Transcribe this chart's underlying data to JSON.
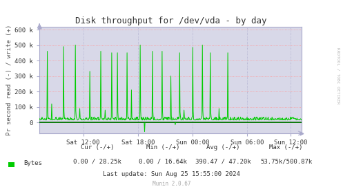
{
  "title": "Disk throughput for /dev/vda - by day",
  "ylabel": "Pr second read (-) / write (+)",
  "ylim": [
    -70000,
    620000
  ],
  "yticks": [
    0,
    100000,
    200000,
    300000,
    400000,
    500000,
    600000
  ],
  "ytick_labels": [
    "0",
    "100 k",
    "200 k",
    "300 k",
    "400 k",
    "500 k",
    "600 k"
  ],
  "xtick_labels": [
    "Sat 12:00",
    "Sat 18:00",
    "Sun 00:00",
    "Sun 06:00",
    "Sun 12:00"
  ],
  "xtick_positions": [
    0.167,
    0.375,
    0.583,
    0.792,
    0.958
  ],
  "line_color": "#00cc00",
  "bg_color": "#cccccc",
  "plot_bg_color": "#d8d8e8",
  "grid_color_h": "#ff9999",
  "grid_color_v": "#aaaacc",
  "zero_line_color": "#000000",
  "legend_label": "Bytes",
  "legend_color": "#00cc00",
  "stats_cur": "0.00 / 28.25k",
  "stats_min": "0.00 / 16.64k",
  "stats_avg": "390.47 / 47.20k",
  "stats_max": "53.75k/500.87k",
  "last_update": "Last update: Sun Aug 25 15:55:00 2024",
  "munin_version": "Munin 2.0.67",
  "rrdtool_label": "RRDTOOL / TOBI OETIKER",
  "n_points": 600
}
